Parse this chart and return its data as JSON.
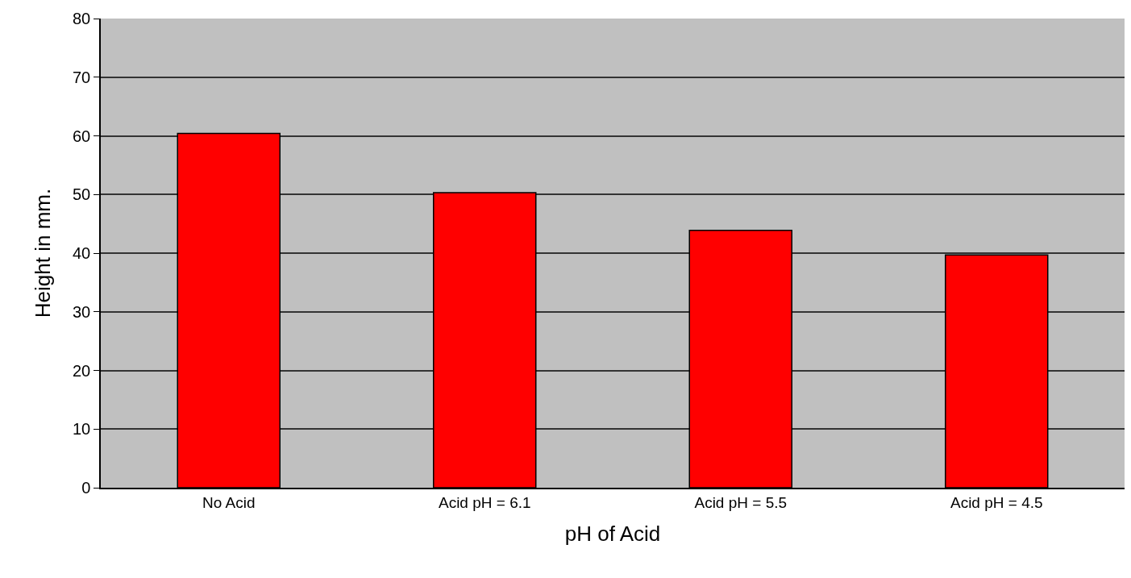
{
  "chart_data": {
    "type": "bar",
    "xlabel": "pH of Acid",
    "ylabel": "Height in mm.",
    "categories": [
      "No Acid",
      "Acid pH = 6.1",
      "Acid pH = 5.5",
      "Acid pH = 4.5"
    ],
    "values": [
      60.4,
      50.3,
      43.9,
      39.7
    ],
    "color": "#ff0000",
    "ylim": [
      0,
      80
    ],
    "yticks": [
      0,
      10,
      20,
      30,
      40,
      50,
      60,
      70,
      80
    ],
    "grid": "y",
    "legend": false
  }
}
